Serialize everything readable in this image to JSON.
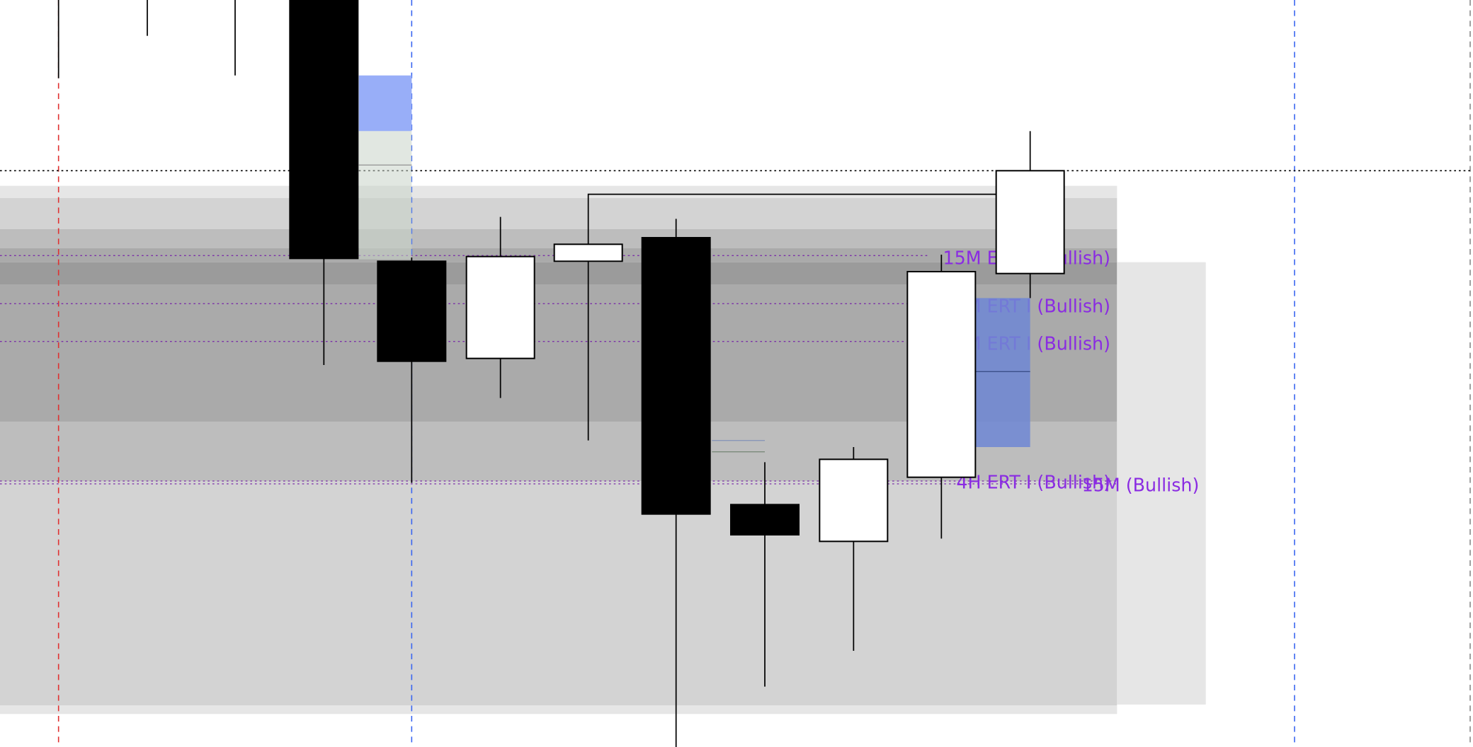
{
  "chart_data": {
    "type": "candlestick",
    "title": "",
    "xlabel": "",
    "ylabel": "",
    "grid": false,
    "candles": [
      {
        "direction": "unknown"
      },
      {
        "direction": "unknown"
      },
      {
        "direction": "unknown"
      },
      {
        "direction": "bearish"
      },
      {
        "direction": "bearish"
      },
      {
        "direction": "bullish"
      },
      {
        "direction": "bullish"
      },
      {
        "direction": "bearish"
      },
      {
        "direction": "bearish"
      },
      {
        "direction": "bullish"
      },
      {
        "direction": "bullish"
      },
      {
        "direction": "bullish"
      }
    ],
    "level_labels": [
      {
        "text": "15M ERT I (Bullish)"
      },
      {
        "text": "15M ERT I (Bullish)"
      },
      {
        "text": "15M ERT I (Bullish)"
      },
      {
        "text": "4H ERT I (Bullish)"
      },
      {
        "text": "15M (Bullish)"
      }
    ]
  },
  "colors": {
    "bull_body": "#ffffff",
    "bear_body": "#000000",
    "label_text": "#8a2be2",
    "level_line": "#7b2fa8",
    "zone_blue": "#98aef8",
    "zone_blue_dark": "#6f87d5",
    "session_red": "#e03030",
    "session_blue": "#3a66f0",
    "session_gray": "#888888"
  }
}
